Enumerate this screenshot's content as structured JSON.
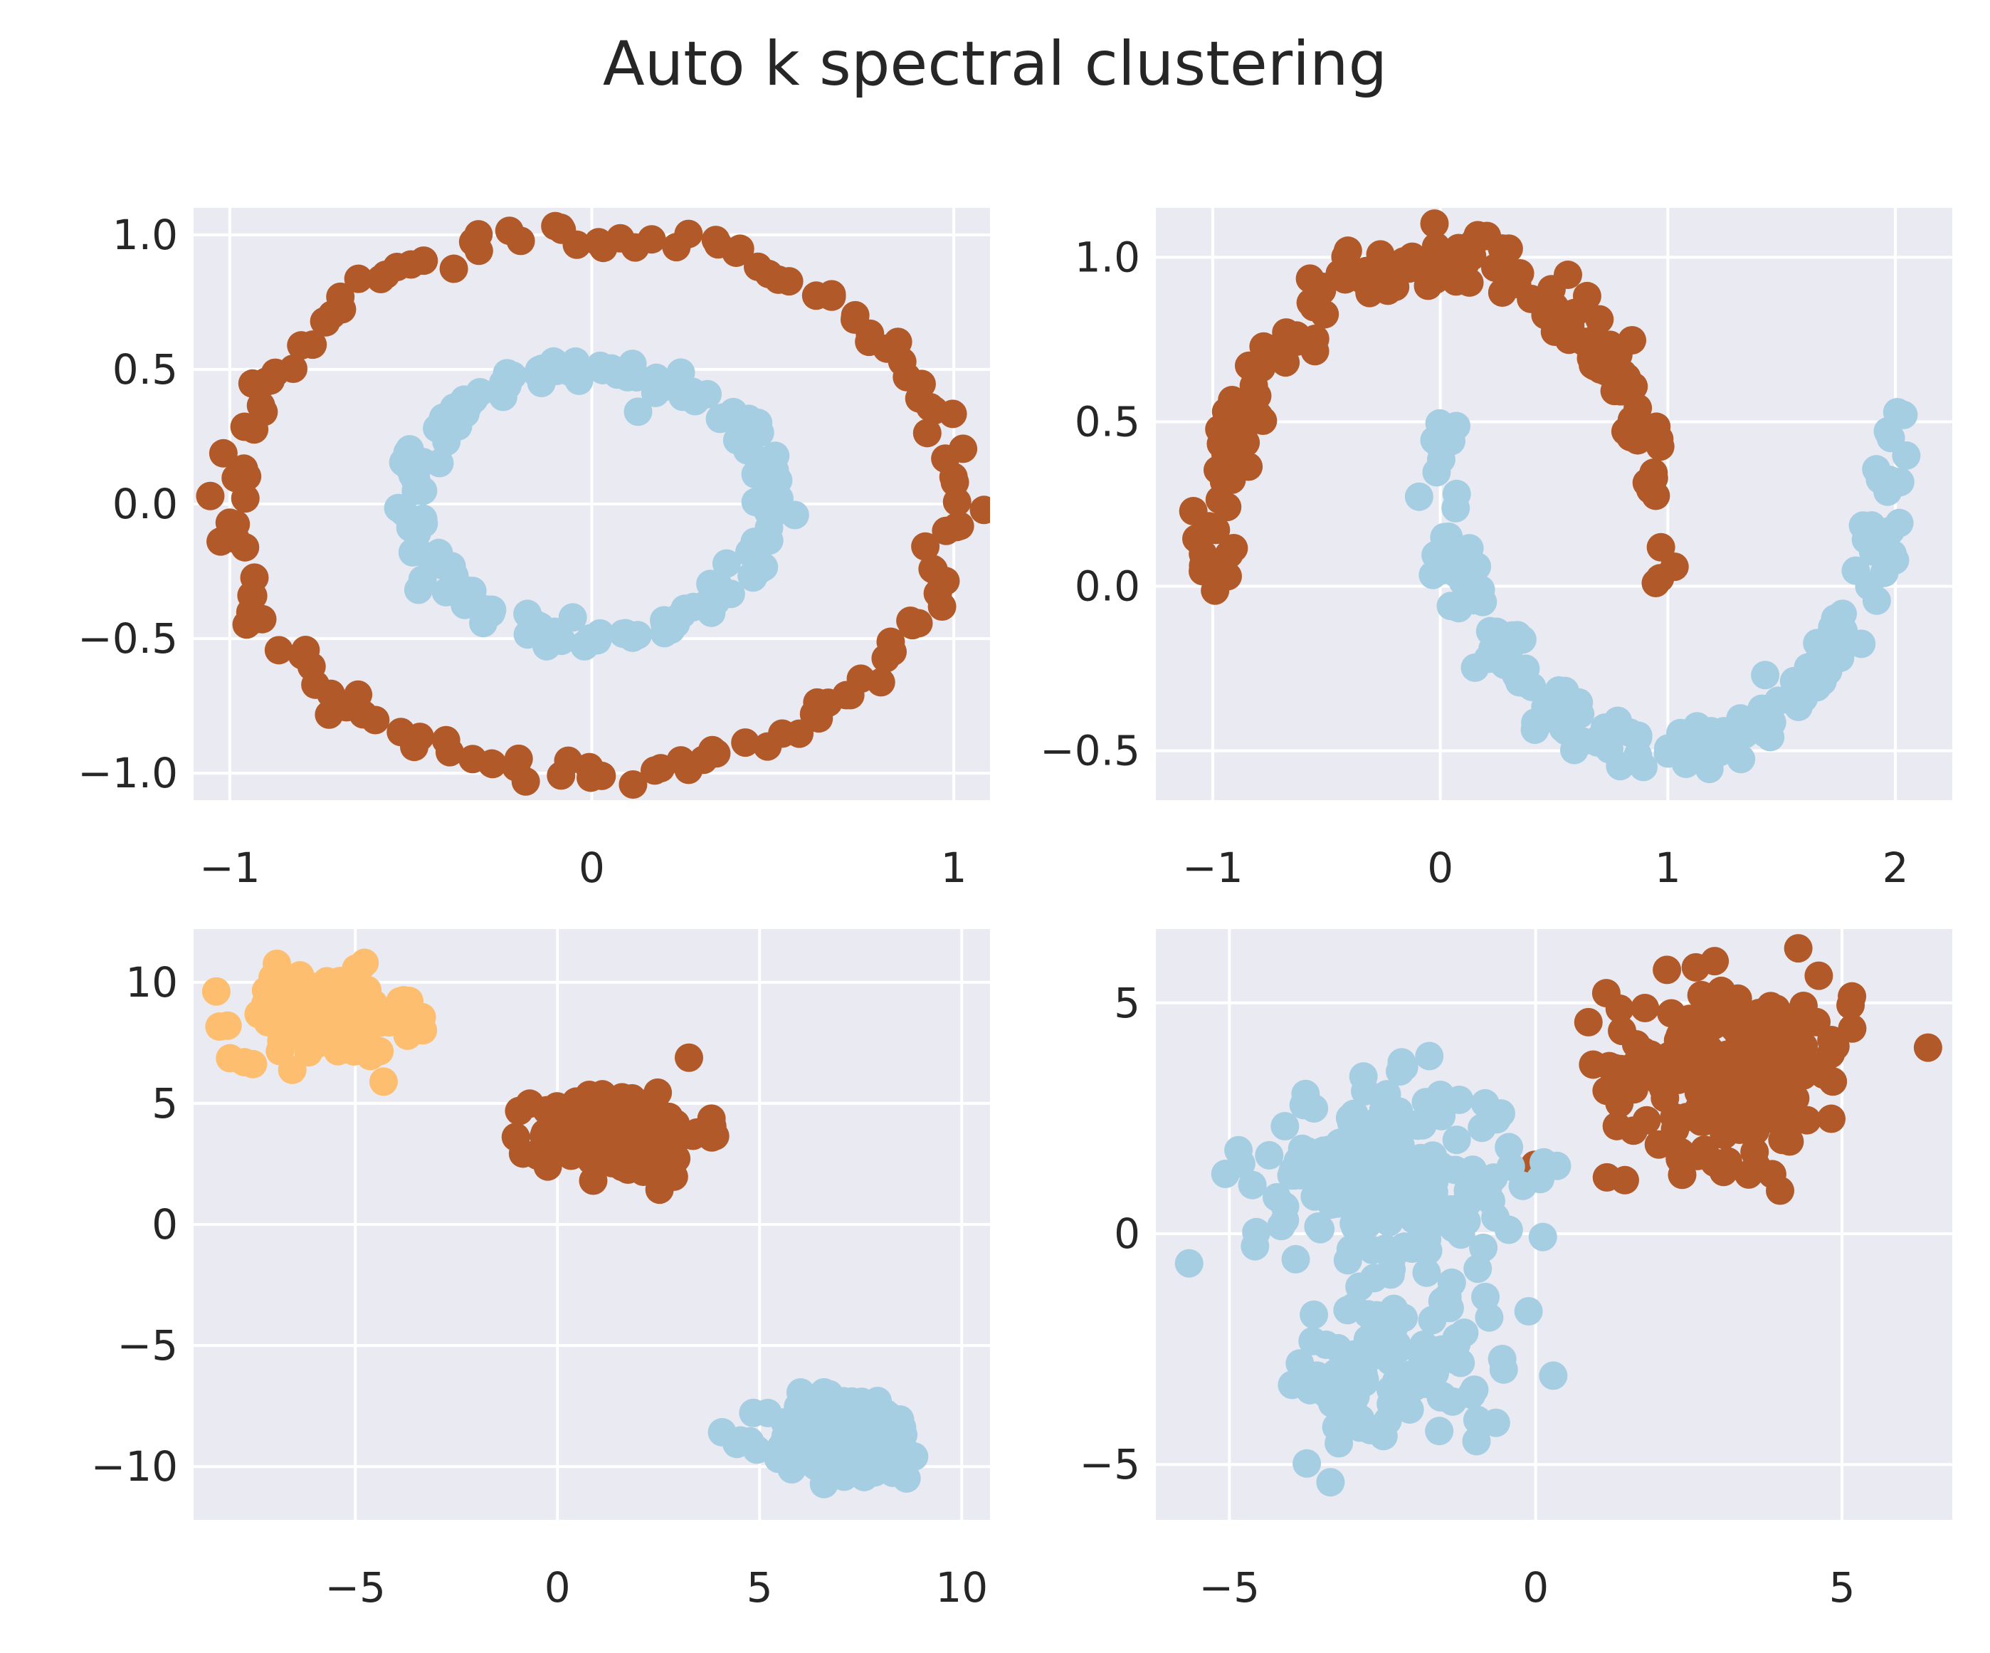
{
  "title": "Auto k spectral clustering",
  "colors": {
    "background": "#eaeaf2",
    "grid": "#ffffff",
    "cluster_light_blue": "#a6cee3",
    "cluster_brown": "#b15928",
    "cluster_orange": "#fdbf6f"
  },
  "chart_data": [
    {
      "type": "scatter",
      "panel": "top-left",
      "xlim": [
        -1.1,
        1.1
      ],
      "ylim": [
        -1.1,
        1.1
      ],
      "xticks": [
        {
          "v": -1,
          "label": "−1"
        },
        {
          "v": 0,
          "label": "0"
        },
        {
          "v": 1,
          "label": "1"
        }
      ],
      "yticks": [
        {
          "v": -1.0,
          "label": "−1.0"
        },
        {
          "v": -0.5,
          "label": "−0.5"
        },
        {
          "v": 0.0,
          "label": "0.0"
        },
        {
          "v": 0.5,
          "label": "0.5"
        },
        {
          "v": 1.0,
          "label": "1.0"
        }
      ],
      "grid": true,
      "clusters": [
        {
          "color": "#b15928",
          "shape": "circle",
          "radius": 1.0,
          "center": [
            0,
            0
          ],
          "n": 150,
          "noise": 0.03
        },
        {
          "color": "#a6cee3",
          "shape": "circle",
          "radius": 0.5,
          "center": [
            0,
            0
          ],
          "n": 150,
          "noise": 0.03
        }
      ]
    },
    {
      "type": "scatter",
      "panel": "top-right",
      "xlim": [
        -1.25,
        2.25
      ],
      "ylim": [
        -0.65,
        1.15
      ],
      "xticks": [
        {
          "v": -1,
          "label": "−1"
        },
        {
          "v": 0,
          "label": "0"
        },
        {
          "v": 1,
          "label": "1"
        },
        {
          "v": 2,
          "label": "2"
        }
      ],
      "yticks": [
        {
          "v": -0.5,
          "label": "−0.5"
        },
        {
          "v": 0.0,
          "label": "0.0"
        },
        {
          "v": 0.5,
          "label": "0.5"
        },
        {
          "v": 1.0,
          "label": "1.0"
        }
      ],
      "grid": true,
      "clusters": [
        {
          "color": "#b15928",
          "shape": "upper-moon",
          "center": [
            0,
            0
          ],
          "n": 150,
          "noise": 0.05
        },
        {
          "color": "#a6cee3",
          "shape": "lower-moon",
          "center": [
            1,
            0.5
          ],
          "n": 150,
          "noise": 0.05
        }
      ]
    },
    {
      "type": "scatter",
      "panel": "bottom-left",
      "xlim": [
        -9,
        10.7
      ],
      "ylim": [
        -12.2,
        12.2
      ],
      "xticks": [
        {
          "v": -5,
          "label": "−5"
        },
        {
          "v": 0,
          "label": "0"
        },
        {
          "v": 5,
          "label": "5"
        },
        {
          "v": 10,
          "label": "10"
        }
      ],
      "yticks": [
        {
          "v": -10,
          "label": "−10"
        },
        {
          "v": -5,
          "label": "−5"
        },
        {
          "v": 0,
          "label": "0"
        },
        {
          "v": 5,
          "label": "5"
        },
        {
          "v": 10,
          "label": "10"
        }
      ],
      "grid": true,
      "clusters": [
        {
          "color": "#fdbf6f",
          "shape": "blob",
          "center": [
            -5.8,
            8.6
          ],
          "spread": [
            1.1,
            0.9
          ],
          "n": 150
        },
        {
          "color": "#b15928",
          "shape": "blob",
          "center": [
            1.6,
            3.8
          ],
          "spread": [
            1.0,
            0.9
          ],
          "n": 150
        },
        {
          "color": "#a6cee3",
          "shape": "blob",
          "center": [
            7.2,
            -8.8
          ],
          "spread": [
            1.0,
            0.9
          ],
          "n": 150
        }
      ]
    },
    {
      "type": "scatter",
      "panel": "bottom-right",
      "xlim": [
        -6.2,
        6.8
      ],
      "ylim": [
        -6.2,
        6.6
      ],
      "xticks": [
        {
          "v": -5,
          "label": "−5"
        },
        {
          "v": 0,
          "label": "0"
        },
        {
          "v": 5,
          "label": "5"
        }
      ],
      "yticks": [
        {
          "v": -5,
          "label": "−5"
        },
        {
          "v": 0,
          "label": "0"
        },
        {
          "v": 5,
          "label": "5"
        }
      ],
      "grid": true,
      "clusters": [
        {
          "color": "#b15928",
          "shape": "blob",
          "center": [
            3.2,
            3.6
          ],
          "spread": [
            1.0,
            1.0
          ],
          "n": 200
        },
        {
          "color": "#a6cee3",
          "shape": "blob",
          "center": [
            -2.4,
            1.2
          ],
          "spread": [
            1.1,
            1.0
          ],
          "n": 200
        },
        {
          "color": "#a6cee3",
          "shape": "blob",
          "center": [
            -2.3,
            -3.0
          ],
          "spread": [
            0.9,
            0.9
          ],
          "n": 100
        }
      ]
    }
  ]
}
